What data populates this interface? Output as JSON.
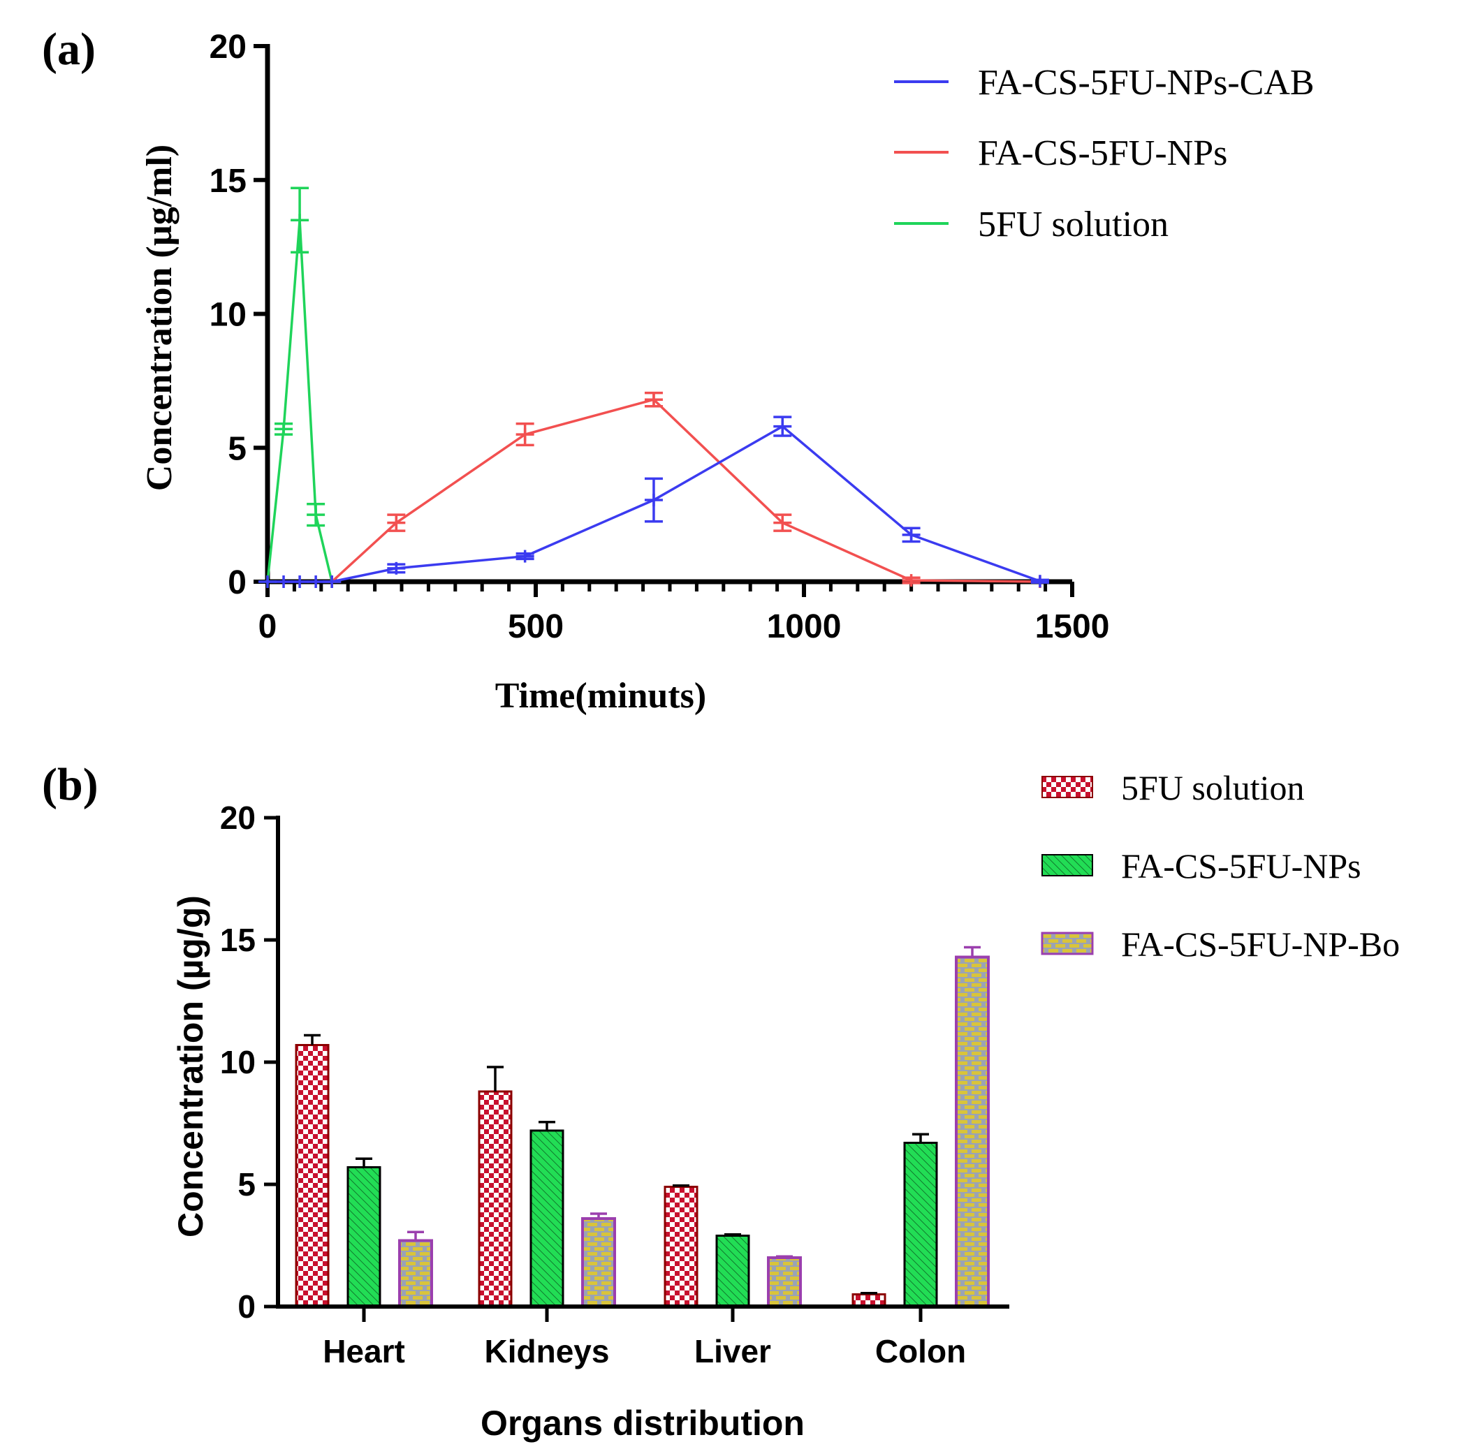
{
  "panels": {
    "a": {
      "label": "(a)"
    },
    "b": {
      "label": "(b)"
    }
  },
  "colors": {
    "blue": "#3b3bf0",
    "red": "#f25050",
    "green": "#1fd45a",
    "checker_red": "#c8102e",
    "bar_green": "#22dd55",
    "bar_yellow": "#d9c43a",
    "bar_purple_edge": "#9b3fae",
    "axis": "#000000"
  },
  "chart_data": [
    {
      "type": "line",
      "title": "",
      "xlabel": "Time(minuts)",
      "ylabel": "Concentration (µg/ml)",
      "xlim": [
        0,
        1500
      ],
      "ylim": [
        0,
        20
      ],
      "xticks": [
        0,
        500,
        1000,
        1500
      ],
      "yticks": [
        0,
        5,
        10,
        15,
        20
      ],
      "legend_position": "top-right",
      "series": [
        {
          "name": "FA-CS-5FU-NPs-CAB",
          "color": "#3b3bf0",
          "x": [
            0,
            30,
            60,
            90,
            120,
            240,
            480,
            720,
            960,
            1200,
            1440
          ],
          "y": [
            0,
            0,
            0,
            0,
            0,
            0.5,
            0.95,
            3.05,
            5.8,
            1.75,
            0.02
          ],
          "err": [
            0,
            0,
            0,
            0,
            0,
            0.15,
            0.1,
            0.8,
            0.35,
            0.25,
            0.05
          ]
        },
        {
          "name": "FA-CS-5FU-NPs",
          "color": "#f25050",
          "x": [
            120,
            240,
            480,
            720,
            960,
            1200,
            1440
          ],
          "y": [
            0,
            2.2,
            5.5,
            6.8,
            2.2,
            0.05,
            0
          ],
          "err": [
            0,
            0.3,
            0.4,
            0.25,
            0.3,
            0.1,
            0
          ]
        },
        {
          "name": "5FU solution",
          "color": "#1fd45a",
          "x": [
            0,
            30,
            60,
            90,
            120
          ],
          "y": [
            0,
            5.7,
            13.5,
            2.5,
            0
          ],
          "err": [
            0,
            0.2,
            1.2,
            0.4,
            0
          ]
        }
      ]
    },
    {
      "type": "bar",
      "title": "",
      "xlabel": "Organs distribution",
      "ylabel": "Concentration (µg/g)",
      "ylim": [
        0,
        20
      ],
      "yticks": [
        0,
        5,
        10,
        15,
        20
      ],
      "legend_position": "top-right",
      "categories": [
        "Heart",
        "Kidneys",
        "Liver",
        "Colon"
      ],
      "series": [
        {
          "name": "5FU solution",
          "pattern": "checker",
          "values": [
            10.7,
            8.8,
            4.9,
            0.5
          ],
          "err": [
            0.4,
            1.0,
            0.05,
            0.05
          ]
        },
        {
          "name": "FA-CS-5FU-NPs",
          "pattern": "diagonal",
          "values": [
            5.7,
            7.2,
            2.9,
            6.7
          ],
          "err": [
            0.35,
            0.35,
            0.05,
            0.35
          ]
        },
        {
          "name": "FA-CS-5FU-NP-Bo",
          "pattern": "brick",
          "values": [
            2.7,
            3.6,
            2.0,
            14.3
          ],
          "err": [
            0.35,
            0.2,
            0.05,
            0.4
          ]
        }
      ]
    }
  ]
}
